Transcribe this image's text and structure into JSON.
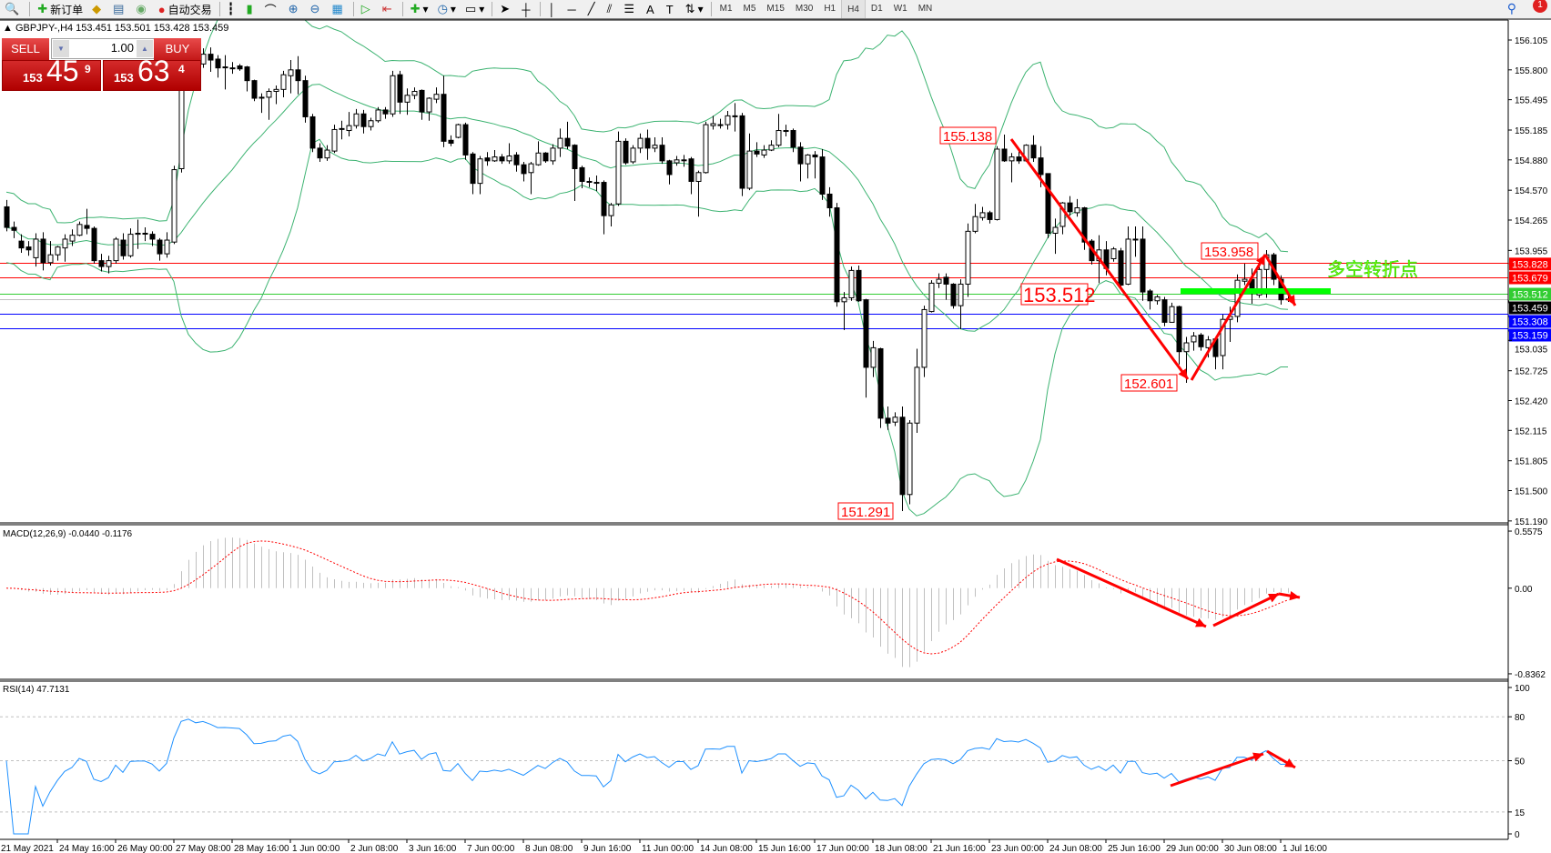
{
  "toolbar": {
    "new_order": "新订单",
    "auto_trading": "自动交易",
    "timeframes": [
      "M1",
      "M5",
      "M15",
      "M30",
      "H1",
      "H4",
      "D1",
      "W1",
      "MN"
    ],
    "active_timeframe": "H4",
    "notification_count": "1"
  },
  "chart": {
    "header": "GBPJPY-,H4  153.451 153.501 153.428 153.459",
    "one_click": {
      "sell_label": "SELL",
      "buy_label": "BUY",
      "lot": "1.00",
      "sell_prefix": "153",
      "sell_big": "45",
      "sell_sup": "9",
      "buy_prefix": "153",
      "buy_big": "63",
      "buy_sup": "4"
    },
    "price_axis": [
      "156.105",
      "155.800",
      "155.495",
      "155.185",
      "154.880",
      "154.570",
      "154.265",
      "153.955",
      "153.035",
      "152.725",
      "152.420",
      "152.115",
      "151.805",
      "151.500",
      "151.190"
    ],
    "levels": [
      {
        "price": "153.828",
        "color": "#ff0000",
        "text": "#ffffff"
      },
      {
        "price": "153.679",
        "color": "#ff0000",
        "text": "#ffffff"
      },
      {
        "price": "153.512",
        "color": "#32cd32",
        "text": "#ffffff"
      },
      {
        "price": "153.459",
        "color": "#000000",
        "text": "#ffffff",
        "line": "#c0c0c0"
      },
      {
        "price": "153.308",
        "color": "#0000ff",
        "text": "#ffffff"
      },
      {
        "price": "153.159",
        "color": "#0000ff",
        "text": "#ffffff"
      }
    ],
    "annotations": {
      "high1": "155.138",
      "level_mid": "153.512",
      "low2": "152.601",
      "low1": "151.291",
      "high2": "153.958",
      "pivot_text": "多空转折点"
    },
    "time_axis": [
      "21 May 2021",
      "24 May 16:00",
      "26 May 00:00",
      "27 May 08:00",
      "28 May 16:00",
      "1 Jun 00:00",
      "2 Jun 08:00",
      "3 Jun 16:00",
      "7 Jun 00:00",
      "8 Jun 08:00",
      "9 Jun 16:00",
      "11 Jun 00:00",
      "14 Jun 08:00",
      "15 Jun 16:00",
      "17 Jun 00:00",
      "18 Jun 08:00",
      "21 Jun 16:00",
      "23 Jun 00:00",
      "24 Jun 08:00",
      "25 Jun 16:00",
      "29 Jun 00:00",
      "30 Jun 08:00",
      "1 Jul 16:00"
    ],
    "macd": {
      "label": "MACD(12,26,9) -0.0440 -0.1176",
      "axis": [
        "0.5575",
        "0.00",
        "-0.8362"
      ]
    },
    "rsi": {
      "label": "RSI(14) 47.7131",
      "axis": [
        "100",
        "80",
        "50",
        "15",
        "0"
      ]
    },
    "colors": {
      "bands": "#3cb371",
      "macd_hist": "#c0c0c0",
      "macd_signal": "#ff0000",
      "rsi": "#1e90ff",
      "arrows": "#ff0000",
      "pivot": "#00ff00"
    }
  },
  "chart_data": {
    "type": "candlestick",
    "symbol": "GBPJPY",
    "timeframe": "H4",
    "ylim": [
      151.19,
      156.105
    ],
    "ohlc": [
      [
        154.4,
        154.47,
        154.15,
        154.19
      ],
      [
        154.19,
        154.25,
        154.08,
        154.16
      ],
      [
        154.05,
        154.12,
        153.93,
        153.98
      ],
      [
        153.99,
        154.05,
        153.9,
        153.96
      ],
      [
        153.88,
        154.13,
        153.79,
        154.07
      ],
      [
        154.07,
        154.14,
        153.75,
        153.83
      ],
      [
        153.83,
        154.05,
        153.8,
        153.91
      ],
      [
        153.91,
        154.0,
        153.85,
        153.99
      ],
      [
        153.98,
        154.12,
        153.84,
        154.07
      ],
      [
        154.05,
        154.17,
        154.0,
        154.11
      ],
      [
        154.11,
        154.25,
        154.1,
        154.22
      ],
      [
        154.21,
        154.38,
        154.12,
        154.18
      ],
      [
        154.18,
        154.2,
        153.82,
        153.85
      ],
      [
        153.85,
        153.92,
        153.74,
        153.79
      ],
      [
        153.79,
        153.9,
        153.72,
        153.85
      ],
      [
        153.85,
        154.09,
        153.82,
        154.07
      ],
      [
        154.06,
        154.13,
        153.86,
        153.9
      ],
      [
        153.9,
        154.18,
        153.88,
        154.12
      ],
      [
        154.12,
        154.27,
        153.97,
        154.13
      ],
      [
        154.13,
        154.19,
        154.05,
        154.13
      ],
      [
        154.12,
        154.15,
        154.0,
        154.07
      ],
      [
        154.06,
        154.08,
        153.85,
        153.92
      ],
      [
        153.92,
        154.14,
        153.88,
        154.06
      ],
      [
        154.04,
        154.82,
        154.02,
        154.78
      ],
      [
        154.79,
        155.8,
        154.75,
        155.75
      ],
      [
        155.75,
        156.1,
        155.7,
        155.95
      ],
      [
        155.95,
        156.05,
        155.8,
        155.86
      ],
      [
        155.86,
        156.02,
        155.82,
        155.96
      ],
      [
        155.96,
        156.03,
        155.78,
        155.9
      ],
      [
        155.91,
        155.95,
        155.72,
        155.82
      ],
      [
        155.83,
        155.95,
        155.6,
        155.83
      ],
      [
        155.82,
        155.88,
        155.76,
        155.82
      ],
      [
        155.84,
        155.86,
        155.79,
        155.81
      ],
      [
        155.83,
        155.84,
        155.58,
        155.69
      ],
      [
        155.69,
        155.7,
        155.48,
        155.51
      ],
      [
        155.52,
        155.56,
        155.36,
        155.52
      ],
      [
        155.52,
        155.61,
        155.29,
        155.58
      ],
      [
        155.58,
        155.64,
        155.45,
        155.6
      ],
      [
        155.6,
        155.79,
        155.52,
        155.75
      ],
      [
        155.74,
        155.9,
        155.56,
        155.8
      ],
      [
        155.8,
        155.94,
        155.55,
        155.69
      ],
      [
        155.69,
        155.74,
        155.26,
        155.32
      ],
      [
        155.32,
        155.35,
        154.96,
        155.0
      ],
      [
        155.0,
        155.05,
        154.86,
        154.9
      ],
      [
        154.9,
        155.03,
        154.87,
        154.98
      ],
      [
        154.97,
        155.24,
        154.95,
        155.19
      ],
      [
        155.2,
        155.28,
        155.09,
        155.2
      ],
      [
        155.18,
        155.37,
        155.12,
        155.23
      ],
      [
        155.23,
        155.4,
        155.2,
        155.35
      ],
      [
        155.35,
        155.39,
        155.15,
        155.22
      ],
      [
        155.22,
        155.31,
        155.18,
        155.28
      ],
      [
        155.28,
        155.42,
        155.26,
        155.39
      ],
      [
        155.39,
        155.42,
        155.3,
        155.35
      ],
      [
        155.35,
        155.79,
        155.32,
        155.74
      ],
      [
        155.75,
        155.79,
        155.35,
        155.47
      ],
      [
        155.47,
        155.61,
        155.34,
        155.54
      ],
      [
        155.54,
        155.62,
        155.5,
        155.58
      ],
      [
        155.59,
        155.6,
        155.29,
        155.37
      ],
      [
        155.37,
        155.52,
        155.28,
        155.51
      ],
      [
        155.5,
        155.62,
        155.46,
        155.55
      ],
      [
        155.55,
        155.74,
        155.01,
        155.07
      ],
      [
        155.08,
        155.13,
        155.02,
        155.05
      ],
      [
        155.11,
        155.25,
        155.1,
        155.24
      ],
      [
        155.24,
        155.26,
        154.88,
        154.93
      ],
      [
        154.94,
        154.96,
        154.53,
        154.64
      ],
      [
        154.64,
        154.92,
        154.53,
        154.89
      ],
      [
        154.9,
        154.96,
        154.82,
        154.87
      ],
      [
        154.87,
        154.98,
        154.86,
        154.91
      ],
      [
        154.91,
        154.94,
        154.84,
        154.87
      ],
      [
        154.87,
        155.05,
        154.84,
        154.92
      ],
      [
        154.93,
        154.96,
        154.76,
        154.83
      ],
      [
        154.83,
        154.86,
        154.66,
        154.74
      ],
      [
        154.75,
        154.86,
        154.53,
        154.84
      ],
      [
        154.83,
        155.07,
        154.82,
        154.95
      ],
      [
        154.95,
        154.96,
        154.85,
        154.87
      ],
      [
        154.87,
        155.04,
        154.83,
        155.0
      ],
      [
        155.0,
        155.2,
        154.91,
        155.1
      ],
      [
        155.1,
        155.27,
        154.99,
        155.02
      ],
      [
        155.03,
        155.04,
        154.46,
        154.79
      ],
      [
        154.8,
        154.82,
        154.59,
        154.66
      ],
      [
        154.66,
        154.7,
        154.6,
        154.66
      ],
      [
        154.65,
        154.72,
        154.56,
        154.65
      ],
      [
        154.65,
        154.67,
        154.12,
        154.31
      ],
      [
        154.31,
        154.44,
        154.2,
        154.42
      ],
      [
        154.43,
        155.17,
        154.41,
        155.07
      ],
      [
        155.07,
        155.1,
        154.83,
        154.85
      ],
      [
        154.86,
        155.03,
        154.84,
        155.0
      ],
      [
        155.0,
        155.15,
        154.95,
        155.1
      ],
      [
        155.1,
        155.19,
        154.88,
        155.0
      ],
      [
        155.0,
        155.11,
        154.96,
        155.03
      ],
      [
        155.03,
        155.11,
        154.84,
        154.87
      ],
      [
        154.87,
        154.88,
        154.63,
        154.73
      ],
      [
        154.85,
        154.92,
        154.82,
        154.88
      ],
      [
        154.88,
        154.93,
        154.81,
        154.88
      ],
      [
        154.89,
        154.91,
        154.53,
        154.66
      ],
      [
        154.66,
        154.77,
        154.3,
        154.75
      ],
      [
        154.75,
        155.27,
        154.74,
        155.24
      ],
      [
        155.23,
        155.33,
        155.19,
        155.25
      ],
      [
        155.24,
        155.3,
        155.2,
        155.24
      ],
      [
        155.24,
        155.38,
        155.19,
        155.33
      ],
      [
        155.33,
        155.46,
        155.17,
        155.33
      ],
      [
        155.33,
        155.36,
        154.51,
        154.59
      ],
      [
        154.59,
        155.15,
        154.57,
        154.97
      ],
      [
        154.97,
        155.06,
        154.91,
        154.94
      ],
      [
        154.93,
        155.03,
        154.9,
        154.98
      ],
      [
        154.98,
        155.08,
        154.97,
        155.03
      ],
      [
        155.03,
        155.35,
        155.01,
        155.18
      ],
      [
        155.18,
        155.24,
        155.12,
        155.18
      ],
      [
        155.18,
        155.2,
        154.96,
        155.01
      ],
      [
        155.01,
        155.06,
        154.66,
        154.84
      ],
      [
        154.84,
        154.94,
        154.69,
        154.93
      ],
      [
        154.93,
        154.97,
        154.69,
        154.91
      ],
      [
        154.91,
        154.99,
        154.47,
        154.53
      ],
      [
        154.53,
        154.6,
        154.3,
        154.39
      ],
      [
        154.39,
        154.44,
        153.38,
        153.43
      ],
      [
        153.43,
        153.53,
        153.14,
        153.47
      ],
      [
        153.47,
        153.79,
        153.44,
        153.75
      ],
      [
        153.75,
        153.8,
        153.43,
        153.44
      ],
      [
        153.45,
        153.46,
        152.45,
        152.76
      ],
      [
        152.76,
        153.03,
        152.66,
        152.96
      ],
      [
        152.95,
        152.96,
        152.14,
        152.24
      ],
      [
        152.24,
        152.36,
        152.12,
        152.19
      ],
      [
        152.2,
        152.3,
        152.16,
        152.25
      ],
      [
        152.25,
        152.36,
        151.291,
        151.46
      ],
      [
        151.46,
        152.22,
        151.36,
        152.19
      ],
      [
        152.19,
        152.95,
        152.09,
        152.76
      ],
      [
        152.76,
        153.39,
        152.66,
        153.35
      ],
      [
        153.33,
        153.65,
        153.32,
        153.62
      ],
      [
        153.62,
        153.72,
        153.57,
        153.66
      ],
      [
        153.68,
        153.72,
        153.45,
        153.61
      ],
      [
        153.61,
        153.62,
        153.36,
        153.39
      ],
      [
        153.39,
        153.66,
        153.15,
        153.61
      ],
      [
        153.61,
        154.23,
        153.48,
        154.15
      ],
      [
        154.15,
        154.43,
        154.13,
        154.3
      ],
      [
        154.29,
        154.4,
        154.26,
        154.34
      ],
      [
        154.34,
        154.36,
        154.23,
        154.27
      ],
      [
        154.27,
        155.02,
        154.26,
        154.99
      ],
      [
        154.99,
        155.138,
        154.86,
        154.87
      ],
      [
        154.87,
        154.95,
        154.65,
        154.91
      ],
      [
        154.91,
        154.99,
        154.84,
        154.87
      ],
      [
        154.87,
        155.04,
        154.86,
        155.03
      ],
      [
        155.03,
        155.13,
        154.86,
        154.9
      ],
      [
        154.9,
        155.02,
        154.6,
        154.73
      ],
      [
        154.74,
        154.74,
        154.08,
        154.13
      ],
      [
        154.13,
        154.28,
        153.92,
        154.19
      ],
      [
        154.2,
        154.45,
        154.12,
        154.44
      ],
      [
        154.44,
        154.51,
        154.31,
        154.35
      ],
      [
        154.34,
        154.48,
        154.3,
        154.39
      ],
      [
        154.39,
        154.4,
        153.96,
        154.04
      ],
      [
        154.05,
        154.07,
        153.81,
        153.85
      ],
      [
        153.85,
        154.11,
        153.62,
        153.96
      ],
      [
        153.96,
        154.05,
        153.7,
        153.77
      ],
      [
        153.87,
        153.99,
        153.84,
        153.97
      ],
      [
        153.95,
        153.98,
        153.58,
        153.6
      ],
      [
        153.61,
        154.2,
        153.6,
        154.07
      ],
      [
        154.07,
        154.2,
        153.89,
        154.07
      ],
      [
        154.07,
        154.2,
        153.44,
        153.53
      ],
      [
        153.54,
        153.56,
        153.35,
        153.44
      ],
      [
        153.44,
        153.5,
        153.4,
        153.48
      ],
      [
        153.45,
        153.48,
        153.18,
        153.22
      ],
      [
        153.22,
        153.42,
        153.22,
        153.38
      ],
      [
        153.38,
        153.39,
        152.79,
        152.92
      ],
      [
        152.92,
        153.07,
        152.601,
        153.01
      ],
      [
        153.02,
        153.12,
        152.93,
        153.08
      ],
      [
        153.09,
        153.11,
        152.93,
        152.97
      ],
      [
        152.96,
        153.08,
        152.86,
        153.04
      ],
      [
        153.05,
        153.06,
        152.74,
        152.87
      ],
      [
        152.88,
        153.3,
        152.74,
        153.25
      ],
      [
        153.25,
        153.38,
        153.02,
        153.28
      ],
      [
        153.28,
        153.71,
        153.22,
        153.65
      ],
      [
        153.64,
        153.82,
        153.6,
        153.66
      ],
      [
        153.66,
        153.77,
        153.41,
        153.56
      ],
      [
        153.5,
        153.87,
        153.47,
        153.76
      ],
      [
        153.76,
        153.958,
        153.47,
        153.91
      ],
      [
        153.91,
        153.93,
        153.6,
        153.66
      ],
      [
        153.66,
        153.7,
        153.4,
        153.45
      ],
      [
        153.451,
        153.501,
        153.428,
        153.459
      ]
    ]
  }
}
